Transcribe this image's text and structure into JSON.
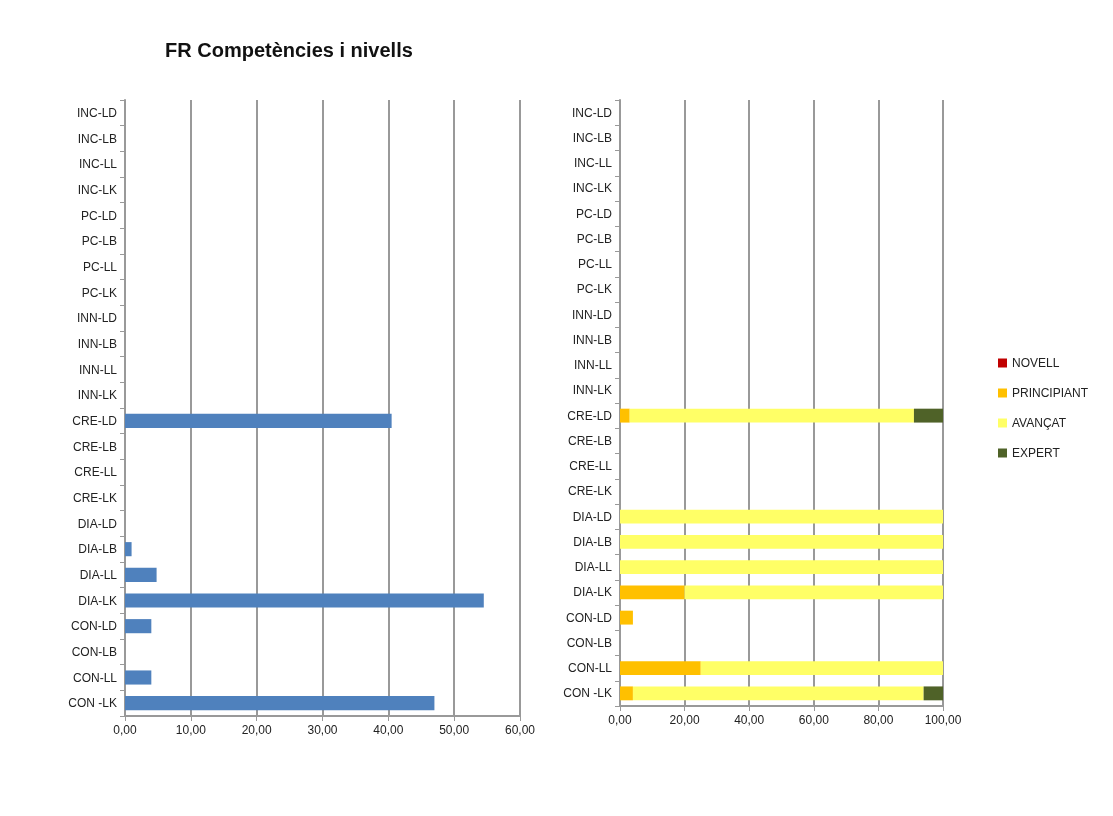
{
  "chart_data": [
    {
      "type": "bar",
      "orientation": "horizontal",
      "title": "FR Competències i nivells",
      "categories": [
        "INC-LD",
        "INC-LB",
        "INC-LL",
        "INC-LK",
        "PC-LD",
        "PC-LB",
        "PC-LL",
        "PC-LK",
        "INN-LD",
        "INN-LB",
        "INN-LL",
        "INN-LK",
        "CRE-LD",
        "CRE-LB",
        "CRE-LL",
        "CRE-LK",
        "DIA-LD",
        "DIA-LB",
        "DIA-LL",
        "DIA-LK",
        "CON-LD",
        "CON-LB",
        "CON-LL",
        "CON -LK"
      ],
      "values": [
        0,
        0,
        0,
        0,
        0,
        0,
        0,
        0,
        0,
        0,
        0,
        0,
        40.5,
        0,
        0,
        0,
        0,
        1,
        4.8,
        54.5,
        4,
        0,
        4,
        47
      ],
      "color": "#4f81bd",
      "xlim": [
        0,
        60
      ],
      "xticks": [
        {
          "value": 0,
          "label": "0,00"
        },
        {
          "value": 10,
          "label": "10,00"
        },
        {
          "value": 20,
          "label": "20,00"
        },
        {
          "value": 30,
          "label": "30,00"
        },
        {
          "value": 40,
          "label": "40,00"
        },
        {
          "value": 50,
          "label": "50,00"
        },
        {
          "value": 60,
          "label": "60,00"
        }
      ],
      "grid": "x",
      "legend": false
    },
    {
      "type": "bar",
      "orientation": "horizontal",
      "stacked": true,
      "categories": [
        "INC-LD",
        "INC-LB",
        "INC-LL",
        "INC-LK",
        "PC-LD",
        "PC-LB",
        "PC-LL",
        "PC-LK",
        "INN-LD",
        "INN-LB",
        "INN-LL",
        "INN-LK",
        "CRE-LD",
        "CRE-LB",
        "CRE-LL",
        "CRE-LK",
        "DIA-LD",
        "DIA-LB",
        "DIA-LL",
        "DIA-LK",
        "CON-LD",
        "CON-LB",
        "CON-LL",
        "CON -LK"
      ],
      "series": [
        {
          "name": "NOVELL",
          "color": "#c00000",
          "values": [
            0,
            0,
            0,
            0,
            0,
            0,
            0,
            0,
            0,
            0,
            0,
            0,
            0,
            0,
            0,
            0,
            0,
            0,
            0,
            0,
            0,
            0,
            0,
            0
          ]
        },
        {
          "name": "PRINCIPIANT",
          "color": "#ffc000",
          "values": [
            0,
            0,
            0,
            0,
            0,
            0,
            0,
            0,
            0,
            0,
            0,
            0,
            3,
            0,
            0,
            0,
            0,
            0,
            0,
            20,
            4,
            0,
            25,
            4
          ]
        },
        {
          "name": "AVANÇAT",
          "color": "#ffff66",
          "values": [
            0,
            0,
            0,
            0,
            0,
            0,
            0,
            0,
            0,
            0,
            0,
            0,
            88,
            0,
            0,
            0,
            100,
            100,
            100,
            80,
            0,
            0,
            75,
            90
          ]
        },
        {
          "name": "EXPERT",
          "color": "#4f6228",
          "values": [
            0,
            0,
            0,
            0,
            0,
            0,
            0,
            0,
            0,
            0,
            0,
            0,
            9,
            0,
            0,
            0,
            0,
            0,
            0,
            0,
            0,
            0,
            0,
            6
          ]
        }
      ],
      "xlim": [
        0,
        100
      ],
      "xticks": [
        {
          "value": 0,
          "label": "0,00"
        },
        {
          "value": 20,
          "label": "20,00"
        },
        {
          "value": 40,
          "label": "40,00"
        },
        {
          "value": 60,
          "label": "60,00"
        },
        {
          "value": 80,
          "label": "80,00"
        },
        {
          "value": 100,
          "label": "100,00"
        }
      ],
      "grid": "x",
      "legend": "right"
    }
  ]
}
